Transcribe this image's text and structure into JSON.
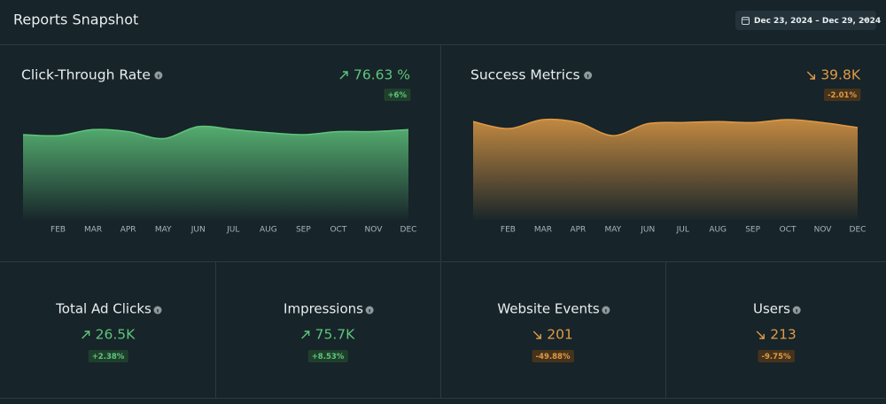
{
  "header": {
    "title": "Reports Snapshot",
    "date_range": "Dec 23, 2024 – Dec 29, 2024"
  },
  "charts": [
    {
      "type": "area",
      "title": "Click-Through Rate",
      "value": "76.63 %",
      "change": "+6%",
      "trend": "up",
      "color": "#5fc57c",
      "categories": [
        null,
        "FEB",
        "MAR",
        "APR",
        "MAY",
        "JUN",
        "JUL",
        "AUG",
        "SEP",
        "OCT",
        "NOV",
        "DEC"
      ],
      "values": [
        85,
        84,
        90,
        88,
        81,
        93,
        90,
        87,
        85,
        88,
        88,
        90
      ],
      "ylim": [
        0,
        100
      ]
    },
    {
      "type": "area",
      "title": "Success Metrics",
      "value": "39.8K",
      "change": "-2.01%",
      "trend": "down",
      "color": "#e09a45",
      "categories": [
        null,
        "FEB",
        "MAR",
        "APR",
        "MAY",
        "JUN",
        "JUL",
        "AUG",
        "SEP",
        "OCT",
        "NOV",
        "DEC"
      ],
      "values": [
        98,
        91,
        100,
        97,
        84,
        96,
        97,
        98,
        97,
        100,
        97,
        92
      ],
      "ylim": [
        0,
        100
      ]
    }
  ],
  "kpis": [
    {
      "title": "Total Ad Clicks",
      "value": "26.5K",
      "change": "+2.38%",
      "trend": "up"
    },
    {
      "title": "Impressions",
      "value": "75.7K",
      "change": "+8.53%",
      "trend": "up"
    },
    {
      "title": "Website Events",
      "value": "201",
      "change": "-49.88%",
      "trend": "down"
    },
    {
      "title": "Users",
      "value": "213",
      "change": "-9.75%",
      "trend": "down"
    }
  ]
}
